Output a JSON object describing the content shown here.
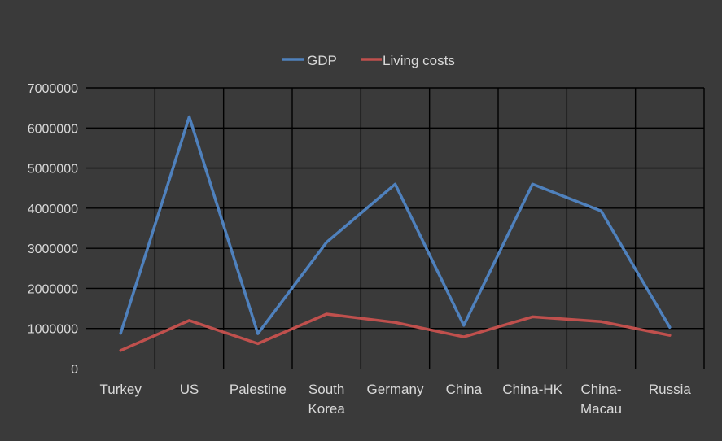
{
  "chart_data": {
    "type": "line",
    "title": "",
    "xlabel": "",
    "ylabel": "",
    "categories": [
      [
        "Turkey"
      ],
      [
        "US"
      ],
      [
        "Palestine"
      ],
      [
        "South",
        "Korea"
      ],
      [
        "Germany"
      ],
      [
        "China"
      ],
      [
        "China-HK"
      ],
      [
        "China-",
        "Macau"
      ],
      [
        "Russia"
      ]
    ],
    "yticks": [
      "0",
      "1000000",
      "2000000",
      "3000000",
      "4000000",
      "5000000",
      "6000000",
      "7000000"
    ],
    "ylim": [
      0,
      7000000
    ],
    "grid": true,
    "legend_position": "top",
    "series": [
      {
        "name": "GDP",
        "color": "#4f81bd",
        "values": [
          880000,
          6280000,
          870000,
          3150000,
          4600000,
          1080000,
          4600000,
          3930000,
          1030000
        ]
      },
      {
        "name": "Living costs",
        "color": "#c0504d",
        "values": [
          450000,
          1200000,
          620000,
          1360000,
          1150000,
          790000,
          1290000,
          1170000,
          830000
        ]
      }
    ],
    "colors": {
      "background": "#3a3a3a",
      "grid": "#000000",
      "text": "#d9d9d9"
    }
  }
}
